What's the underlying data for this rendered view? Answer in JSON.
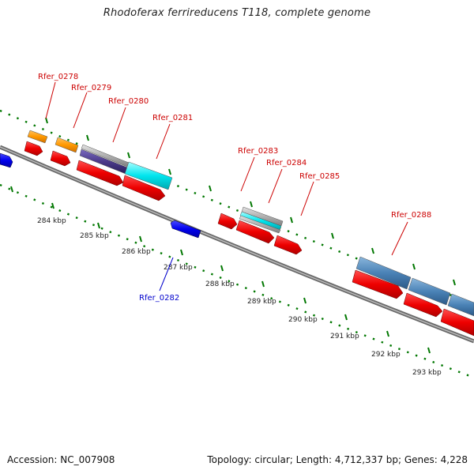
{
  "title": "Rhodoferax ferrireducens T118, complete genome",
  "accession_label": "Accession: NC_007908",
  "summary_label": "Topology: circular; Length: 4,712,337 bp; Genes: 4,228",
  "colors": {
    "cds_forward": "#ee0000",
    "cds_reverse": "#0000ee",
    "feature_orange": "#ff9900",
    "feature_cyan": "#00e5ee",
    "feature_steelblue": "#4a82b6",
    "feature_purple": "#4b3a8a",
    "feature_gray": "#a8a8a8",
    "backbone": "#888888",
    "tick": "#007700",
    "label_forward": "#cc0000",
    "label_reverse": "#0000cc"
  },
  "scale_labels": [
    "284 kbp",
    "285 kbp",
    "286 kbp",
    "287 kbp",
    "288 kbp",
    "289 kbp",
    "290 kbp",
    "291 kbp",
    "292 kbp",
    "293 kbp"
  ],
  "gene_labels": [
    {
      "name": "Rfer_0278",
      "strand": "forward"
    },
    {
      "name": "Rfer_0279",
      "strand": "forward"
    },
    {
      "name": "Rfer_0280",
      "strand": "forward"
    },
    {
      "name": "Rfer_0281",
      "strand": "forward"
    },
    {
      "name": "Rfer_0282",
      "strand": "reverse"
    },
    {
      "name": "Rfer_0283",
      "strand": "forward"
    },
    {
      "name": "Rfer_0284",
      "strand": "forward"
    },
    {
      "name": "Rfer_0285",
      "strand": "forward"
    },
    {
      "name": "Rfer_0288",
      "strand": "forward"
    }
  ]
}
